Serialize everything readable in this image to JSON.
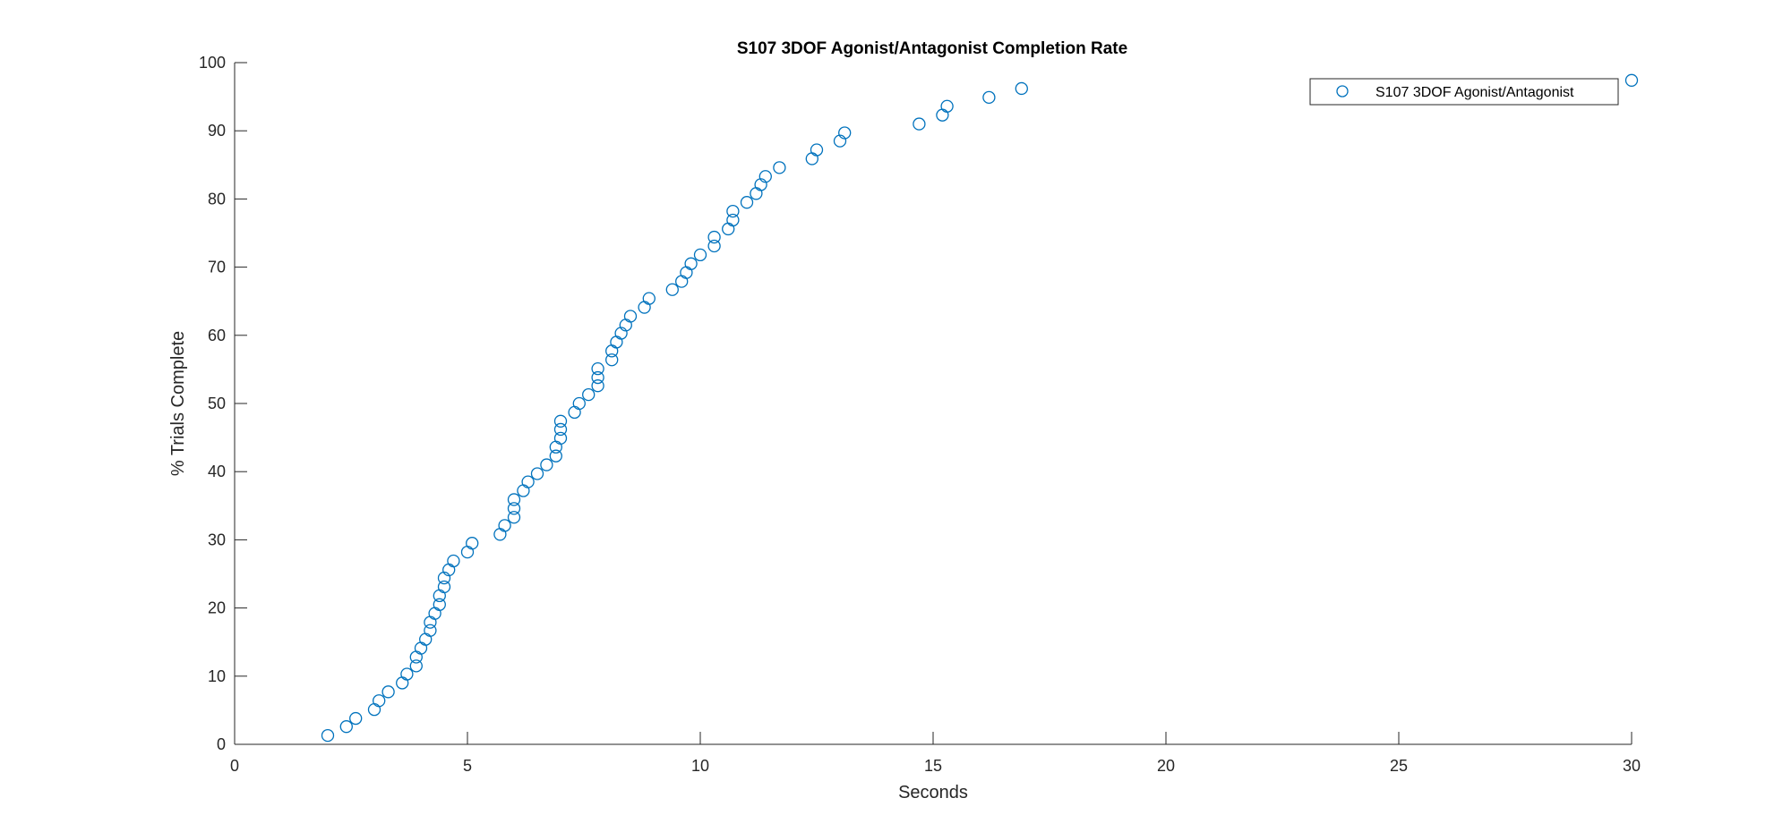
{
  "chart_data": {
    "type": "scatter",
    "title": "S107 3DOF Agonist/Antagonist Completion Rate",
    "xlabel": "Seconds",
    "ylabel": "% Trials Complete",
    "xlim": [
      0,
      30
    ],
    "ylim": [
      0,
      100
    ],
    "xticks": [
      0,
      5,
      10,
      15,
      20,
      25,
      30
    ],
    "yticks": [
      0,
      10,
      20,
      30,
      40,
      50,
      60,
      70,
      80,
      90,
      100
    ],
    "grid": false,
    "legend_position": "top-right",
    "marker_color": "#0072BD",
    "series": [
      {
        "name": "S107 3DOF Agonist/Antagonist",
        "marker": "circle-open",
        "points": [
          [
            2.0,
            1.3
          ],
          [
            2.4,
            2.6
          ],
          [
            2.6,
            3.8
          ],
          [
            3.0,
            5.1
          ],
          [
            3.1,
            6.4
          ],
          [
            3.3,
            7.7
          ],
          [
            3.6,
            9.0
          ],
          [
            3.7,
            10.3
          ],
          [
            3.9,
            11.5
          ],
          [
            3.9,
            12.8
          ],
          [
            4.0,
            14.1
          ],
          [
            4.1,
            15.4
          ],
          [
            4.2,
            16.7
          ],
          [
            4.2,
            17.9
          ],
          [
            4.3,
            19.2
          ],
          [
            4.4,
            20.5
          ],
          [
            4.4,
            21.8
          ],
          [
            4.5,
            23.1
          ],
          [
            4.5,
            24.4
          ],
          [
            4.6,
            25.6
          ],
          [
            4.7,
            26.9
          ],
          [
            5.0,
            28.2
          ],
          [
            5.1,
            29.5
          ],
          [
            5.7,
            30.8
          ],
          [
            5.8,
            32.1
          ],
          [
            6.0,
            33.3
          ],
          [
            6.0,
            34.6
          ],
          [
            6.0,
            35.9
          ],
          [
            6.2,
            37.2
          ],
          [
            6.3,
            38.5
          ],
          [
            6.5,
            39.7
          ],
          [
            6.7,
            41.0
          ],
          [
            6.9,
            42.3
          ],
          [
            6.9,
            43.6
          ],
          [
            7.0,
            44.9
          ],
          [
            7.0,
            46.2
          ],
          [
            7.0,
            47.4
          ],
          [
            7.3,
            48.7
          ],
          [
            7.4,
            50.0
          ],
          [
            7.6,
            51.3
          ],
          [
            7.8,
            52.6
          ],
          [
            7.8,
            53.8
          ],
          [
            7.8,
            55.1
          ],
          [
            8.1,
            56.4
          ],
          [
            8.1,
            57.7
          ],
          [
            8.2,
            59.0
          ],
          [
            8.3,
            60.3
          ],
          [
            8.4,
            61.5
          ],
          [
            8.5,
            62.8
          ],
          [
            8.8,
            64.1
          ],
          [
            8.9,
            65.4
          ],
          [
            9.4,
            66.7
          ],
          [
            9.6,
            67.9
          ],
          [
            9.7,
            69.2
          ],
          [
            9.8,
            70.5
          ],
          [
            10.0,
            71.8
          ],
          [
            10.3,
            73.1
          ],
          [
            10.3,
            74.4
          ],
          [
            10.6,
            75.6
          ],
          [
            10.7,
            76.9
          ],
          [
            10.7,
            78.2
          ],
          [
            11.0,
            79.5
          ],
          [
            11.2,
            80.8
          ],
          [
            11.3,
            82.1
          ],
          [
            11.4,
            83.3
          ],
          [
            11.7,
            84.6
          ],
          [
            12.4,
            85.9
          ],
          [
            12.5,
            87.2
          ],
          [
            13.0,
            88.5
          ],
          [
            13.1,
            89.7
          ],
          [
            14.7,
            91.0
          ],
          [
            15.2,
            92.3
          ],
          [
            15.3,
            93.6
          ],
          [
            16.2,
            94.9
          ],
          [
            16.9,
            96.2
          ],
          [
            30.0,
            97.4
          ]
        ]
      }
    ]
  }
}
